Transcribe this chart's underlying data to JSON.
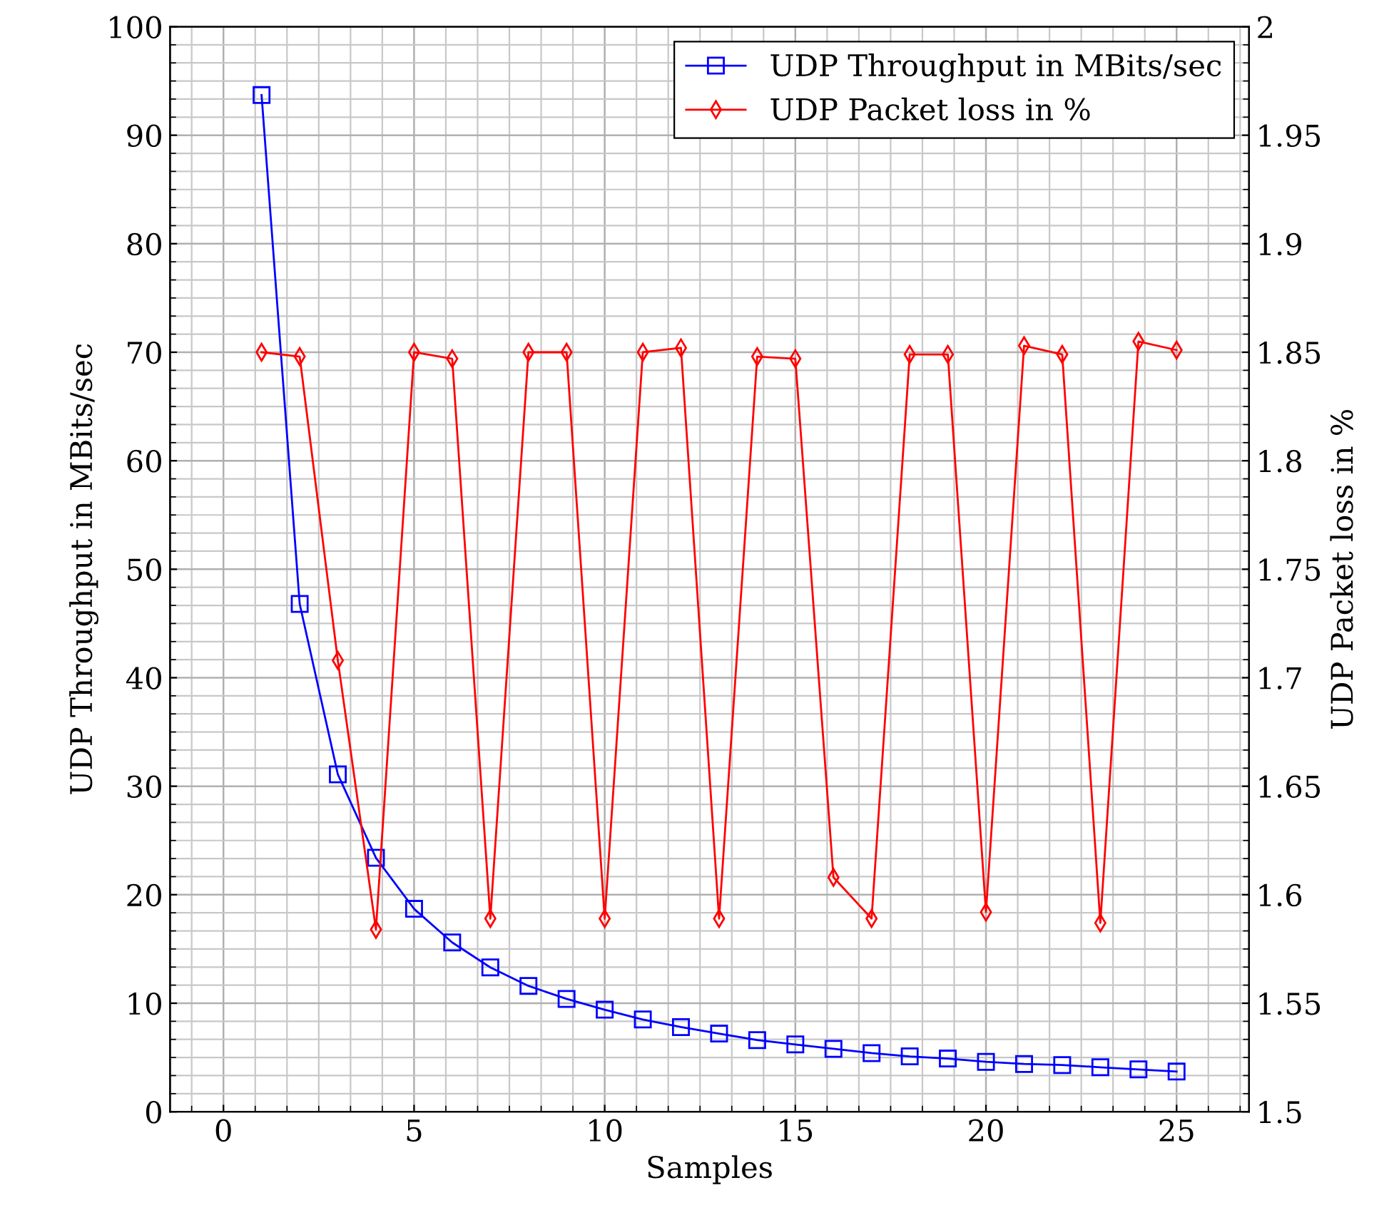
{
  "chart_data": {
    "type": "line",
    "xlabel": "Samples",
    "ylabel": "UDP Throughput in MBits/sec",
    "y2label": "UDP Packet loss in %",
    "x": [
      1,
      2,
      3,
      4,
      5,
      6,
      7,
      8,
      9,
      10,
      11,
      12,
      13,
      14,
      15,
      16,
      17,
      18,
      19,
      20,
      21,
      22,
      23,
      24,
      25
    ],
    "series": [
      {
        "name": "UDP Throughput in MBits/sec",
        "color": "#0000ff",
        "marker": "square",
        "values": [
          93.7,
          46.8,
          31.1,
          23.4,
          18.7,
          15.6,
          13.3,
          11.6,
          10.4,
          9.4,
          8.5,
          7.8,
          7.2,
          6.6,
          6.2,
          5.8,
          5.4,
          5.1,
          4.9,
          4.6,
          4.4,
          4.3,
          4.1,
          3.9,
          3.7
        ]
      },
      {
        "name": "UDP Packet loss in %",
        "color": "#ff0000",
        "marker": "diamond",
        "axis": "y2",
        "values": [
          1.85,
          1.848,
          1.708,
          1.584,
          1.85,
          1.847,
          1.589,
          1.85,
          1.85,
          1.589,
          1.85,
          1.852,
          1.589,
          1.848,
          1.847,
          1.608,
          1.589,
          1.849,
          1.849,
          1.592,
          1.853,
          1.849,
          1.587,
          1.855,
          1.851
        ]
      }
    ],
    "xlim": [
      -1.4,
      26.9
    ],
    "xticks": [
      0,
      5,
      10,
      15,
      20,
      25
    ],
    "ylim": [
      0,
      100
    ],
    "yticks": [
      0,
      10,
      20,
      30,
      40,
      50,
      60,
      70,
      80,
      90,
      100
    ],
    "y2lim": [
      1.5,
      2
    ],
    "y2ticks": [
      1.5,
      1.55,
      1.6,
      1.65,
      1.7,
      1.75,
      1.8,
      1.85,
      1.9,
      1.95,
      2
    ],
    "grid": true,
    "legend": "top right",
    "line_style": "solid"
  }
}
